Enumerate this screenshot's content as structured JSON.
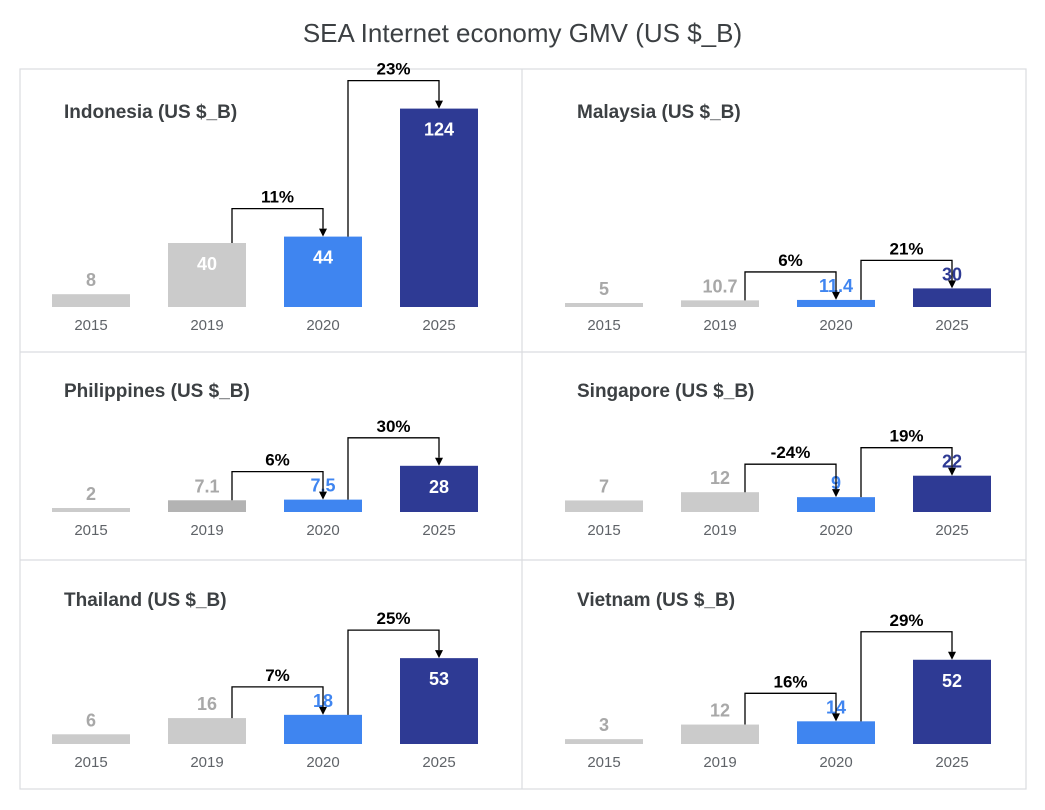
{
  "title": "SEA Internet economy GMV (US $_B)",
  "colors": {
    "y2015": "#cbcbcb",
    "y2019": "#cbcbcb",
    "y2019_dark": "#b3b3b3",
    "y2020": "#3f85f0",
    "y2025": "#2e3a94",
    "label_grey": "#a8a8a8",
    "label_blue": "#3f85f0",
    "label_white": "#ffffff"
  },
  "chart_data": [
    {
      "type": "bar",
      "title": "Indonesia (US $_B)",
      "categories": [
        "2015",
        "2019",
        "2020",
        "2025"
      ],
      "values": [
        8,
        40,
        44,
        124
      ],
      "value_labels": [
        "8",
        "40",
        "44",
        "124"
      ],
      "growth": [
        {
          "from": "2019",
          "to": "2020",
          "label": "11%"
        },
        {
          "from": "2020",
          "to": "2025",
          "label": "23%"
        }
      ]
    },
    {
      "type": "bar",
      "title": "Malaysia (US $_B)",
      "categories": [
        "2015",
        "2019",
        "2020",
        "2025"
      ],
      "values": [
        5,
        10.7,
        11.4,
        30
      ],
      "value_labels": [
        "5",
        "10.7",
        "11.4",
        "30"
      ],
      "growth": [
        {
          "from": "2019",
          "to": "2020",
          "label": "6%"
        },
        {
          "from": "2020",
          "to": "2025",
          "label": "21%"
        }
      ]
    },
    {
      "type": "bar",
      "title": "Philippines (US $_B)",
      "categories": [
        "2015",
        "2019",
        "2020",
        "2025"
      ],
      "values": [
        2,
        7.1,
        7.5,
        28
      ],
      "value_labels": [
        "2",
        "7.1",
        "7.5",
        "28"
      ],
      "growth": [
        {
          "from": "2019",
          "to": "2020",
          "label": "6%"
        },
        {
          "from": "2020",
          "to": "2025",
          "label": "30%"
        }
      ]
    },
    {
      "type": "bar",
      "title": "Singapore (US $_B)",
      "categories": [
        "2015",
        "2019",
        "2020",
        "2025"
      ],
      "values": [
        7,
        12,
        9,
        22
      ],
      "value_labels": [
        "7",
        "12",
        "9",
        "22"
      ],
      "growth": [
        {
          "from": "2019",
          "to": "2020",
          "label": "-24%"
        },
        {
          "from": "2020",
          "to": "2025",
          "label": "19%"
        }
      ]
    },
    {
      "type": "bar",
      "title": "Thailand (US $_B)",
      "categories": [
        "2015",
        "2019",
        "2020",
        "2025"
      ],
      "values": [
        6,
        16,
        18,
        53
      ],
      "value_labels": [
        "6",
        "16",
        "18",
        "53"
      ],
      "growth": [
        {
          "from": "2019",
          "to": "2020",
          "label": "7%"
        },
        {
          "from": "2020",
          "to": "2025",
          "label": "25%"
        }
      ]
    },
    {
      "type": "bar",
      "title": "Vietnam (US $_B)",
      "categories": [
        "2015",
        "2019",
        "2020",
        "2025"
      ],
      "values": [
        3,
        12,
        14,
        52
      ],
      "value_labels": [
        "3",
        "12",
        "14",
        "52"
      ],
      "growth": [
        {
          "from": "2019",
          "to": "2020",
          "label": "16%"
        },
        {
          "from": "2020",
          "to": "2025",
          "label": "29%"
        }
      ]
    }
  ]
}
